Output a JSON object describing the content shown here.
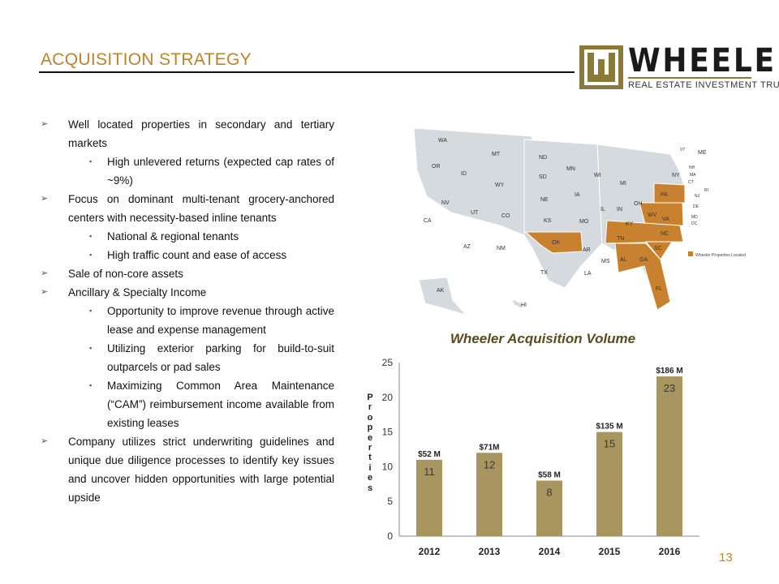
{
  "header": {
    "title": "ACQUISITION STRATEGY",
    "logo_word": "WHEELER",
    "logo_subtitle": "REAL ESTATE INVESTMENT TRUST"
  },
  "bullets": [
    {
      "level": 1,
      "text": "Well located properties in secondary and tertiary markets"
    },
    {
      "level": 2,
      "text": "High unlevered returns (expected cap rates of ~9%)"
    },
    {
      "level": 1,
      "text": "Focus on dominant multi-tenant grocery-anchored centers with necessity-based inline tenants"
    },
    {
      "level": 2,
      "text": "National & regional tenants"
    },
    {
      "level": 2,
      "text": "High traffic count and ease of access"
    },
    {
      "level": 1,
      "text": "Sale of non-core assets"
    },
    {
      "level": 1,
      "text": "Ancillary & Specialty Income"
    },
    {
      "level": 2,
      "text": "Opportunity to improve revenue through active lease and expense management"
    },
    {
      "level": 2,
      "text": "Utilizing exterior parking for build-to-suit outparcels or pad sales"
    },
    {
      "level": 2,
      "text": "Maximizing Common Area Maintenance (“CAM”) reimbursement income available from existing leases"
    },
    {
      "level": 1,
      "text": "Company utilizes strict underwriting guidelines and unique due diligence processes to identify key issues and uncover hidden opportunities with large potential upside"
    }
  ],
  "map": {
    "legend": "Wheeler Properties Located",
    "highlight_color": "#c8822f",
    "base_color": "#d4dade",
    "labels": {
      "west": [
        "WA",
        "OR",
        "ID",
        "MT",
        "WY",
        "CA",
        "NV",
        "UT",
        "CO",
        "AZ",
        "NM"
      ],
      "central": [
        "ND",
        "SD",
        "NE",
        "KS",
        "OK",
        "TX",
        "MN",
        "IA",
        "MO",
        "AR",
        "LA"
      ],
      "east": [
        "WI",
        "MI",
        "IL",
        "IN",
        "OH",
        "KY",
        "TN",
        "MS",
        "AL",
        "GA",
        "FL",
        "SC",
        "NC",
        "VA",
        "WV",
        "PA",
        "NY"
      ],
      "northeast": [
        "VT",
        "NH",
        "ME",
        "MA",
        "RI",
        "CT",
        "NJ",
        "DE",
        "MD",
        "DC"
      ],
      "other": [
        "AK",
        "HI"
      ]
    }
  },
  "chart_data": {
    "type": "bar",
    "title": "Wheeler Acquisition Volume",
    "ylabel": "Properties",
    "categories": [
      "2012",
      "2013",
      "2014",
      "2015",
      "2016"
    ],
    "values": [
      11,
      12,
      8,
      15,
      23
    ],
    "annotations": [
      "$52 M",
      "$71M",
      "$58 M",
      "$135 M",
      "$186 M"
    ],
    "ylim": [
      0,
      25
    ],
    "yticks": [
      0,
      5,
      10,
      15,
      20,
      25
    ],
    "bar_color": "#a89560",
    "grid": false
  },
  "footer": {
    "page_number": "13"
  }
}
